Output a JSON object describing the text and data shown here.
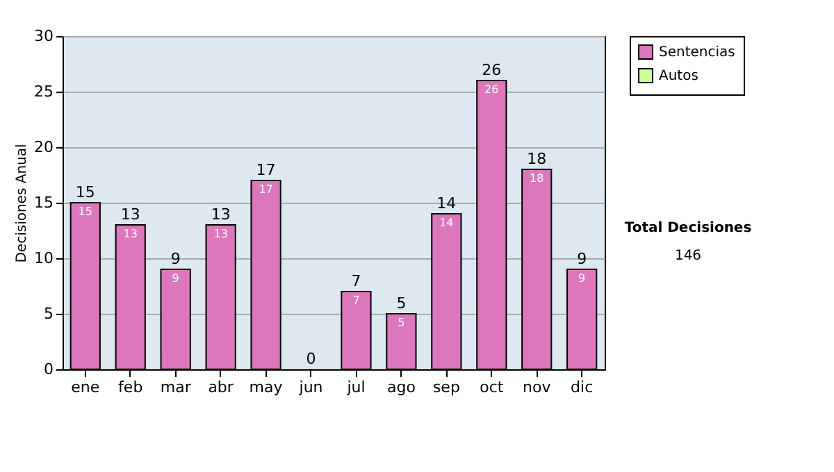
{
  "chart_data": {
    "type": "bar",
    "ylabel": "Decisiones Anual",
    "categories": [
      "ene",
      "feb",
      "mar",
      "abr",
      "may",
      "jun",
      "jul",
      "ago",
      "sep",
      "oct",
      "nov",
      "dic"
    ],
    "series": [
      {
        "name": "Sentencias",
        "color": "#dd77bb",
        "values": [
          15,
          13,
          9,
          13,
          17,
          0,
          7,
          5,
          14,
          26,
          18,
          9
        ],
        "value_labels": [
          "15",
          "13",
          "9",
          "13",
          "17",
          null,
          "7",
          "5",
          "14",
          "26",
          "18",
          "9"
        ]
      },
      {
        "name": "Autos",
        "color": "#ccff99",
        "values": [
          0,
          0,
          0,
          0,
          0,
          0,
          0,
          0,
          0,
          0,
          0,
          0
        ]
      }
    ],
    "stacked": true,
    "totals": [
      "15",
      "13",
      "9",
      "13",
      "17",
      "0",
      "7",
      "5",
      "14",
      "26",
      "18",
      "9"
    ],
    "ylim": [
      0,
      30
    ],
    "yticks": [
      0,
      5,
      10,
      15,
      20,
      25,
      30
    ],
    "grid": "y",
    "legend": "right",
    "annotations": [
      "Total Decisiones",
      "146"
    ]
  }
}
